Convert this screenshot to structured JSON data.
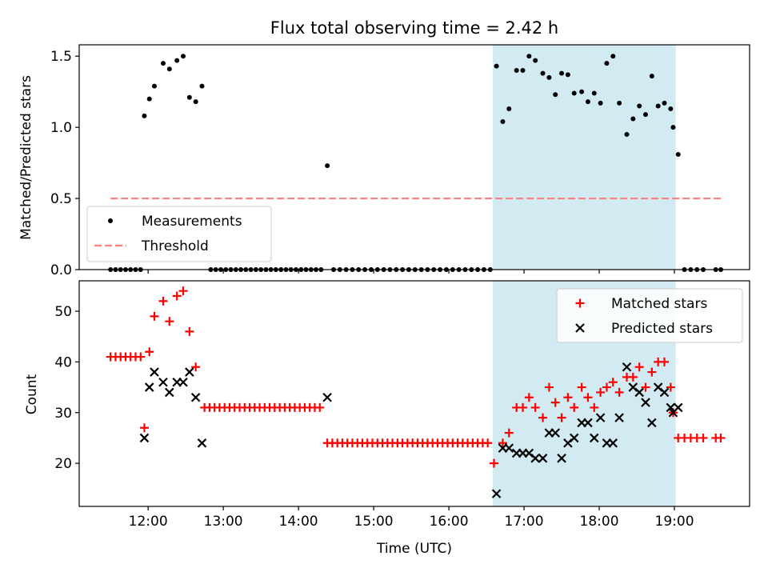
{
  "chart_data": [
    {
      "type": "scatter",
      "title": "Flux total observing time = 2.42 h",
      "xlabel": "",
      "ylabel": "Matched/Predicted stars",
      "ylim": [
        0,
        1.58
      ],
      "yticks": [
        0.0,
        0.5,
        1.0,
        1.5
      ],
      "ytick_labels": [
        "0.0",
        "0.5",
        "1.0",
        "1.5"
      ],
      "xlim": [
        "11:05",
        "20:00"
      ],
      "xticks": [
        "12:00",
        "13:00",
        "14:00",
        "15:00",
        "16:00",
        "17:00",
        "18:00",
        "19:00"
      ],
      "highlight_span": [
        "16:35",
        "19:01"
      ],
      "highlight_color": "#add8e6",
      "legend_position": "lower-left",
      "series": [
        {
          "name": "Measurements",
          "marker": "dot",
          "color": "#000000",
          "points": [
            [
              "11:30",
              0
            ],
            [
              "11:34",
              0
            ],
            [
              "11:38",
              0
            ],
            [
              "11:42",
              0
            ],
            [
              "11:46",
              0
            ],
            [
              "11:50",
              0
            ],
            [
              "11:54",
              0
            ],
            [
              "11:57",
              1.08
            ],
            [
              "12:01",
              1.2
            ],
            [
              "12:05",
              1.29
            ],
            [
              "12:12",
              1.45
            ],
            [
              "12:17",
              1.41
            ],
            [
              "12:23",
              1.47
            ],
            [
              "12:28",
              1.5
            ],
            [
              "12:33",
              1.21
            ],
            [
              "12:38",
              1.18
            ],
            [
              "12:43",
              1.29
            ],
            [
              "12:50",
              0
            ],
            [
              "12:54",
              0
            ],
            [
              "12:58",
              0
            ],
            [
              "13:02",
              0
            ],
            [
              "13:06",
              0
            ],
            [
              "13:10",
              0
            ],
            [
              "13:14",
              0
            ],
            [
              "13:18",
              0
            ],
            [
              "13:22",
              0
            ],
            [
              "13:26",
              0
            ],
            [
              "13:30",
              0
            ],
            [
              "13:34",
              0
            ],
            [
              "13:38",
              0
            ],
            [
              "13:42",
              0
            ],
            [
              "13:46",
              0
            ],
            [
              "13:50",
              0
            ],
            [
              "13:54",
              0
            ],
            [
              "13:58",
              0
            ],
            [
              "14:02",
              0
            ],
            [
              "14:06",
              0
            ],
            [
              "14:10",
              0
            ],
            [
              "14:14",
              0
            ],
            [
              "14:18",
              0
            ],
            [
              "14:23",
              0.73
            ],
            [
              "14:28",
              0
            ],
            [
              "14:33",
              0
            ],
            [
              "14:38",
              0
            ],
            [
              "14:43",
              0
            ],
            [
              "14:48",
              0
            ],
            [
              "14:53",
              0
            ],
            [
              "14:58",
              0
            ],
            [
              "15:03",
              0
            ],
            [
              "15:08",
              0
            ],
            [
              "15:13",
              0
            ],
            [
              "15:18",
              0
            ],
            [
              "15:23",
              0
            ],
            [
              "15:28",
              0
            ],
            [
              "15:33",
              0
            ],
            [
              "15:38",
              0
            ],
            [
              "15:43",
              0
            ],
            [
              "15:48",
              0
            ],
            [
              "15:53",
              0
            ],
            [
              "15:58",
              0
            ],
            [
              "16:03",
              0
            ],
            [
              "16:08",
              0
            ],
            [
              "16:13",
              0
            ],
            [
              "16:18",
              0
            ],
            [
              "16:23",
              0
            ],
            [
              "16:28",
              0
            ],
            [
              "16:33",
              0
            ],
            [
              "16:38",
              1.43
            ],
            [
              "16:43",
              1.04
            ],
            [
              "16:48",
              1.13
            ],
            [
              "16:54",
              1.4
            ],
            [
              "16:59",
              1.4
            ],
            [
              "17:04",
              1.5
            ],
            [
              "17:09",
              1.47
            ],
            [
              "17:15",
              1.38
            ],
            [
              "17:20",
              1.35
            ],
            [
              "17:25",
              1.23
            ],
            [
              "17:30",
              1.38
            ],
            [
              "17:35",
              1.37
            ],
            [
              "17:40",
              1.24
            ],
            [
              "17:46",
              1.25
            ],
            [
              "17:51",
              1.18
            ],
            [
              "17:56",
              1.24
            ],
            [
              "18:01",
              1.17
            ],
            [
              "18:06",
              1.45
            ],
            [
              "18:11",
              1.5
            ],
            [
              "18:16",
              1.17
            ],
            [
              "18:22",
              0.95
            ],
            [
              "18:27",
              1.06
            ],
            [
              "18:32",
              1.15
            ],
            [
              "18:37",
              1.09
            ],
            [
              "18:42",
              1.36
            ],
            [
              "18:47",
              1.15
            ],
            [
              "18:52",
              1.17
            ],
            [
              "18:57",
              1.13
            ],
            [
              "18:59",
              1.0
            ],
            [
              "19:03",
              0.81
            ],
            [
              "19:08",
              0
            ],
            [
              "19:13",
              0
            ],
            [
              "19:18",
              0
            ],
            [
              "19:23",
              0
            ],
            [
              "19:33",
              0
            ],
            [
              "19:37",
              0
            ]
          ]
        },
        {
          "name": "Threshold",
          "marker": "dashed-line",
          "color": "#ff8080",
          "points": [
            [
              "11:30",
              0.5
            ],
            [
              "19:37",
              0.5
            ]
          ]
        }
      ]
    },
    {
      "type": "scatter",
      "title": "",
      "xlabel": "Time (UTC)",
      "ylabel": "Count",
      "ylim": [
        11.5,
        56
      ],
      "yticks": [
        20,
        30,
        40,
        50
      ],
      "ytick_labels": [
        "20",
        "30",
        "40",
        "50"
      ],
      "xlim": [
        "11:05",
        "20:00"
      ],
      "xticks": [
        "12:00",
        "13:00",
        "14:00",
        "15:00",
        "16:00",
        "17:00",
        "18:00",
        "19:00"
      ],
      "xtick_labels": [
        "12:00",
        "13:00",
        "14:00",
        "15:00",
        "16:00",
        "17:00",
        "18:00",
        "19:00"
      ],
      "highlight_span": [
        "16:35",
        "19:01"
      ],
      "highlight_color": "#add8e6",
      "legend_position": "upper-right",
      "series": [
        {
          "name": "Matched stars",
          "marker": "plus",
          "color": "#ff0000",
          "points": [
            [
              "11:30",
              41
            ],
            [
              "11:34",
              41
            ],
            [
              "11:38",
              41
            ],
            [
              "11:42",
              41
            ],
            [
              "11:46",
              41
            ],
            [
              "11:50",
              41
            ],
            [
              "11:54",
              41
            ],
            [
              "11:57",
              27
            ],
            [
              "12:01",
              42
            ],
            [
              "12:05",
              49
            ],
            [
              "12:12",
              52
            ],
            [
              "12:17",
              48
            ],
            [
              "12:23",
              53
            ],
            [
              "12:28",
              54
            ],
            [
              "12:33",
              46
            ],
            [
              "12:38",
              39
            ],
            [
              "12:45",
              31
            ],
            [
              "12:49",
              31
            ],
            [
              "12:53",
              31
            ],
            [
              "12:57",
              31
            ],
            [
              "13:01",
              31
            ],
            [
              "13:05",
              31
            ],
            [
              "13:09",
              31
            ],
            [
              "13:13",
              31
            ],
            [
              "13:17",
              31
            ],
            [
              "13:21",
              31
            ],
            [
              "13:25",
              31
            ],
            [
              "13:29",
              31
            ],
            [
              "13:33",
              31
            ],
            [
              "13:37",
              31
            ],
            [
              "13:41",
              31
            ],
            [
              "13:45",
              31
            ],
            [
              "13:49",
              31
            ],
            [
              "13:53",
              31
            ],
            [
              "13:57",
              31
            ],
            [
              "14:01",
              31
            ],
            [
              "14:05",
              31
            ],
            [
              "14:09",
              31
            ],
            [
              "14:13",
              31
            ],
            [
              "14:17",
              31
            ],
            [
              "14:23",
              24
            ],
            [
              "14:27",
              24
            ],
            [
              "14:31",
              24
            ],
            [
              "14:35",
              24
            ],
            [
              "14:39",
              24
            ],
            [
              "14:43",
              24
            ],
            [
              "14:47",
              24
            ],
            [
              "14:51",
              24
            ],
            [
              "14:55",
              24
            ],
            [
              "14:59",
              24
            ],
            [
              "15:03",
              24
            ],
            [
              "15:07",
              24
            ],
            [
              "15:11",
              24
            ],
            [
              "15:15",
              24
            ],
            [
              "15:19",
              24
            ],
            [
              "15:23",
              24
            ],
            [
              "15:27",
              24
            ],
            [
              "15:31",
              24
            ],
            [
              "15:35",
              24
            ],
            [
              "15:39",
              24
            ],
            [
              "15:43",
              24
            ],
            [
              "15:47",
              24
            ],
            [
              "15:51",
              24
            ],
            [
              "15:55",
              24
            ],
            [
              "15:59",
              24
            ],
            [
              "16:03",
              24
            ],
            [
              "16:07",
              24
            ],
            [
              "16:11",
              24
            ],
            [
              "16:15",
              24
            ],
            [
              "16:19",
              24
            ],
            [
              "16:23",
              24
            ],
            [
              "16:27",
              24
            ],
            [
              "16:31",
              24
            ],
            [
              "16:36",
              20
            ],
            [
              "16:43",
              24
            ],
            [
              "16:48",
              26
            ],
            [
              "16:54",
              31
            ],
            [
              "16:59",
              31
            ],
            [
              "17:04",
              33
            ],
            [
              "17:09",
              31
            ],
            [
              "17:15",
              29
            ],
            [
              "17:20",
              35
            ],
            [
              "17:25",
              32
            ],
            [
              "17:30",
              29
            ],
            [
              "17:35",
              33
            ],
            [
              "17:40",
              31
            ],
            [
              "17:46",
              35
            ],
            [
              "17:51",
              33
            ],
            [
              "17:56",
              31
            ],
            [
              "18:01",
              34
            ],
            [
              "18:06",
              35
            ],
            [
              "18:11",
              36
            ],
            [
              "18:16",
              34
            ],
            [
              "18:22",
              37
            ],
            [
              "18:27",
              37
            ],
            [
              "18:32",
              39
            ],
            [
              "18:37",
              35
            ],
            [
              "18:42",
              38
            ],
            [
              "18:47",
              40
            ],
            [
              "18:52",
              40
            ],
            [
              "18:57",
              35
            ],
            [
              "18:59",
              30
            ],
            [
              "19:03",
              25
            ],
            [
              "19:08",
              25
            ],
            [
              "19:13",
              25
            ],
            [
              "19:18",
              25
            ],
            [
              "19:23",
              25
            ],
            [
              "19:33",
              25
            ],
            [
              "19:37",
              25
            ]
          ]
        },
        {
          "name": "Predicted stars",
          "marker": "x",
          "color": "#000000",
          "points": [
            [
              "11:57",
              25
            ],
            [
              "12:01",
              35
            ],
            [
              "12:05",
              38
            ],
            [
              "12:12",
              36
            ],
            [
              "12:17",
              34
            ],
            [
              "12:23",
              36
            ],
            [
              "12:28",
              36
            ],
            [
              "12:33",
              38
            ],
            [
              "12:38",
              33
            ],
            [
              "12:43",
              24
            ],
            [
              "14:23",
              33
            ],
            [
              "16:38",
              14
            ],
            [
              "16:43",
              23
            ],
            [
              "16:48",
              23
            ],
            [
              "16:54",
              22
            ],
            [
              "16:59",
              22
            ],
            [
              "17:04",
              22
            ],
            [
              "17:09",
              21
            ],
            [
              "17:15",
              21
            ],
            [
              "17:20",
              26
            ],
            [
              "17:25",
              26
            ],
            [
              "17:30",
              21
            ],
            [
              "17:35",
              24
            ],
            [
              "17:40",
              25
            ],
            [
              "17:46",
              28
            ],
            [
              "17:51",
              28
            ],
            [
              "17:56",
              25
            ],
            [
              "18:01",
              29
            ],
            [
              "18:06",
              24
            ],
            [
              "18:11",
              24
            ],
            [
              "18:16",
              29
            ],
            [
              "18:22",
              39
            ],
            [
              "18:27",
              35
            ],
            [
              "18:32",
              34
            ],
            [
              "18:37",
              32
            ],
            [
              "18:42",
              28
            ],
            [
              "18:47",
              35
            ],
            [
              "18:52",
              34
            ],
            [
              "18:57",
              31
            ],
            [
              "18:59",
              30
            ],
            [
              "19:03",
              31
            ]
          ]
        }
      ]
    }
  ]
}
